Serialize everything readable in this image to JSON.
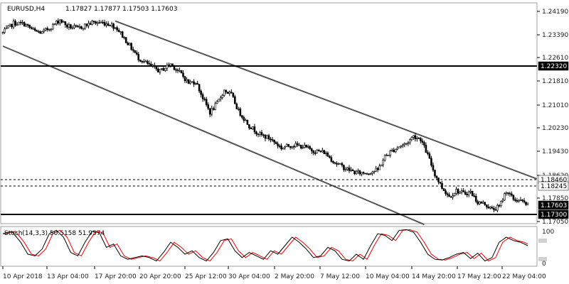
{
  "header": {
    "symbol": "EURUSD,H4",
    "quote": "1.17827 1.17877 1.17503 1.17603"
  },
  "oscillator": {
    "label": "Stoch(14,3,3) 50.5158 51.9574",
    "scale_top": "100",
    "scale_bottom": "0"
  },
  "chart_data": [
    {
      "type": "candlestick",
      "symbol": "EURUSD",
      "timeframe": "H4",
      "ylim": [
        1.167,
        1.245
      ],
      "y_ticks": [
        "1.24190",
        "1.23390",
        "1.22610",
        "1.21810",
        "1.21010",
        "1.20230",
        "1.19430",
        "1.18620",
        "1.17850",
        "1.17050"
      ],
      "x_ticks": [
        "10 Apr 2018",
        "13 Apr 04:00",
        "17 Apr 20:00",
        "20 Apr 20:00",
        "25 Apr 12:00",
        "30 Apr 04:00",
        "2 May 20:00",
        "7 May 12:00",
        "10 May 04:00",
        "14 May 20:00",
        "17 May 12:00",
        "22 May 04:00"
      ],
      "price_tags": [
        {
          "value": "1.22320",
          "kind": "resistance",
          "style": "solid",
          "bg": "#000000",
          "fg": "#ffffff"
        },
        {
          "value": "1.18460",
          "kind": "level",
          "style": "dashed",
          "bg": "#ffffff",
          "fg": "#000000"
        },
        {
          "value": "1.18245",
          "kind": "level",
          "style": "dashed",
          "bg": "#ffffff",
          "fg": "#000000"
        },
        {
          "value": "1.17603",
          "kind": "current",
          "style": "none",
          "bg": "#000000",
          "fg": "#ffffff"
        },
        {
          "value": "1.17300",
          "kind": "support",
          "style": "solid",
          "bg": "#000000",
          "fg": "#ffffff"
        }
      ],
      "channel": {
        "upper": {
          "from_bar": 63,
          "from_price": 1.2385,
          "to_bar": 299,
          "to_price": 1.185
        },
        "lower": {
          "from_bar": 0,
          "from_price": 1.23,
          "to_bar": 236,
          "to_price": 1.1695
        }
      },
      "close_anchors": [
        [
          0,
          1.2345
        ],
        [
          6,
          1.2378
        ],
        [
          12,
          1.2375
        ],
        [
          18,
          1.235
        ],
        [
          22,
          1.2345
        ],
        [
          28,
          1.237
        ],
        [
          32,
          1.239
        ],
        [
          36,
          1.2368
        ],
        [
          42,
          1.236
        ],
        [
          50,
          1.238
        ],
        [
          55,
          1.238
        ],
        [
          60,
          1.2375
        ],
        [
          64,
          1.236
        ],
        [
          70,
          1.231
        ],
        [
          76,
          1.226
        ],
        [
          82,
          1.2235
        ],
        [
          88,
          1.2215
        ],
        [
          94,
          1.224
        ],
        [
          100,
          1.2205
        ],
        [
          104,
          1.2175
        ],
        [
          108,
          1.218
        ],
        [
          112,
          1.2125
        ],
        [
          116,
          1.2075
        ],
        [
          120,
          1.2105
        ],
        [
          124,
          1.215
        ],
        [
          128,
          1.2135
        ],
        [
          132,
          1.208
        ],
        [
          138,
          1.203
        ],
        [
          144,
          1.2
        ],
        [
          150,
          1.1985
        ],
        [
          156,
          1.1955
        ],
        [
          162,
          1.1965
        ],
        [
          168,
          1.196
        ],
        [
          174,
          1.1945
        ],
        [
          180,
          1.194
        ],
        [
          186,
          1.1905
        ],
        [
          192,
          1.1885
        ],
        [
          198,
          1.187
        ],
        [
          204,
          1.187
        ],
        [
          210,
          1.188
        ],
        [
          214,
          1.1925
        ],
        [
          218,
          1.1945
        ],
        [
          222,
          1.196
        ],
        [
          226,
          1.197
        ],
        [
          230,
          1.1995
        ],
        [
          234,
          1.1985
        ],
        [
          238,
          1.193
        ],
        [
          242,
          1.1865
        ],
        [
          246,
          1.182
        ],
        [
          250,
          1.179
        ],
        [
          254,
          1.181
        ],
        [
          258,
          1.18
        ],
        [
          262,
          1.1805
        ],
        [
          266,
          1.177
        ],
        [
          270,
          1.1765
        ],
        [
          274,
          1.1745
        ],
        [
          278,
          1.1755
        ],
        [
          282,
          1.181
        ],
        [
          286,
          1.178
        ],
        [
          290,
          1.1775
        ],
        [
          294,
          1.176
        ]
      ],
      "stoch_points": [
        [
          0,
          85
        ],
        [
          5,
          92
        ],
        [
          10,
          60
        ],
        [
          14,
          25
        ],
        [
          18,
          20
        ],
        [
          22,
          40
        ],
        [
          26,
          85
        ],
        [
          30,
          95
        ],
        [
          34,
          75
        ],
        [
          38,
          30
        ],
        [
          42,
          20
        ],
        [
          46,
          60
        ],
        [
          50,
          92
        ],
        [
          54,
          88
        ],
        [
          58,
          45
        ],
        [
          62,
          55
        ],
        [
          66,
          20
        ],
        [
          70,
          10
        ],
        [
          74,
          15
        ],
        [
          78,
          20
        ],
        [
          82,
          15
        ],
        [
          86,
          5
        ],
        [
          90,
          30
        ],
        [
          94,
          60
        ],
        [
          98,
          45
        ],
        [
          102,
          25
        ],
        [
          106,
          35
        ],
        [
          110,
          15
        ],
        [
          114,
          5
        ],
        [
          118,
          30
        ],
        [
          122,
          65
        ],
        [
          126,
          70
        ],
        [
          130,
          35
        ],
        [
          134,
          15
        ],
        [
          138,
          30
        ],
        [
          142,
          20
        ],
        [
          146,
          10
        ],
        [
          150,
          35
        ],
        [
          154,
          25
        ],
        [
          158,
          50
        ],
        [
          162,
          75
        ],
        [
          166,
          60
        ],
        [
          170,
          40
        ],
        [
          174,
          15
        ],
        [
          178,
          20
        ],
        [
          182,
          45
        ],
        [
          186,
          35
        ],
        [
          190,
          10
        ],
        [
          194,
          5
        ],
        [
          198,
          25
        ],
        [
          202,
          10
        ],
        [
          206,
          50
        ],
        [
          210,
          85
        ],
        [
          214,
          80
        ],
        [
          218,
          65
        ],
        [
          222,
          95
        ],
        [
          226,
          97
        ],
        [
          230,
          90
        ],
        [
          234,
          60
        ],
        [
          238,
          25
        ],
        [
          242,
          10
        ],
        [
          246,
          8
        ],
        [
          250,
          15
        ],
        [
          254,
          25
        ],
        [
          258,
          30
        ],
        [
          262,
          12
        ],
        [
          266,
          28
        ],
        [
          270,
          5
        ],
        [
          274,
          15
        ],
        [
          278,
          60
        ],
        [
          282,
          75
        ],
        [
          286,
          65
        ],
        [
          290,
          60
        ],
        [
          294,
          50
        ]
      ],
      "total_bars": 295
    }
  ],
  "colors": {
    "candle": "#000000",
    "stoch_main": "#000000",
    "stoch_signal": "#ff0000",
    "channel": "#555555",
    "level": "#000000"
  }
}
